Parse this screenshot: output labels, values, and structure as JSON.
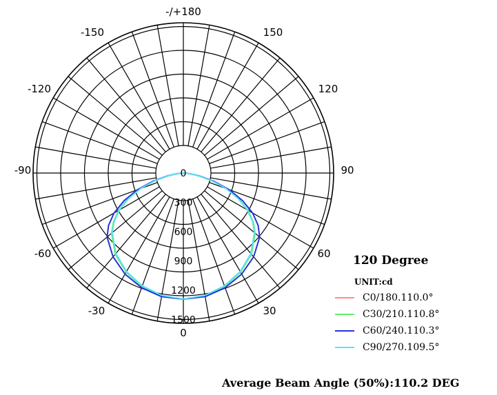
{
  "chart_data": {
    "type": "polar-line",
    "angle_labels": [
      "-/+180",
      "150",
      "120",
      "90",
      "60",
      "30",
      "0",
      "-30",
      "-60",
      "-90",
      "-120",
      "-150"
    ],
    "radial_labels": [
      "0",
      "300",
      "600",
      "900",
      "1200",
      "1500"
    ],
    "unit": "UNIT:cd",
    "title": "120 Degree",
    "series": [
      {
        "name": "C0/180.110.0°",
        "color": "#ff8a8a",
        "angles": [
          0,
          10,
          20,
          30,
          40,
          50,
          55,
          60,
          65,
          70,
          75,
          80,
          85,
          90
        ],
        "values": [
          1290,
          1275,
          1235,
          1170,
          1080,
          955,
          870,
          760,
          625,
          470,
          300,
          150,
          50,
          0
        ]
      },
      {
        "name": "C30/210.110.8°",
        "color": "#66ee66",
        "angles": [
          0,
          10,
          20,
          30,
          40,
          50,
          55,
          60,
          65,
          70,
          75,
          80,
          85,
          90
        ],
        "values": [
          1292,
          1277,
          1238,
          1172,
          1085,
          960,
          875,
          765,
          630,
          475,
          305,
          155,
          52,
          0
        ]
      },
      {
        "name": "C60/240.110.3°",
        "color": "#2233dd",
        "angles": [
          0,
          10,
          20,
          30,
          40,
          50,
          55,
          60,
          65,
          70,
          75,
          80,
          85,
          90
        ],
        "values": [
          1292,
          1285,
          1250,
          1195,
          1120,
          1020,
          935,
          820,
          670,
          500,
          320,
          160,
          55,
          0
        ]
      },
      {
        "name": "C90/270.109.5°",
        "color": "#5ee0f2",
        "angles": [
          0,
          10,
          20,
          30,
          40,
          50,
          55,
          60,
          65,
          70,
          75,
          80,
          85,
          90
        ],
        "values": [
          1290,
          1272,
          1230,
          1165,
          1075,
          950,
          865,
          755,
          620,
          465,
          295,
          148,
          48,
          0
        ]
      }
    ],
    "rlim": [
      0,
      1500
    ],
    "grid": true,
    "legend_position": "right"
  },
  "footer": "Average Beam Angle (50%):110.2 DEG"
}
